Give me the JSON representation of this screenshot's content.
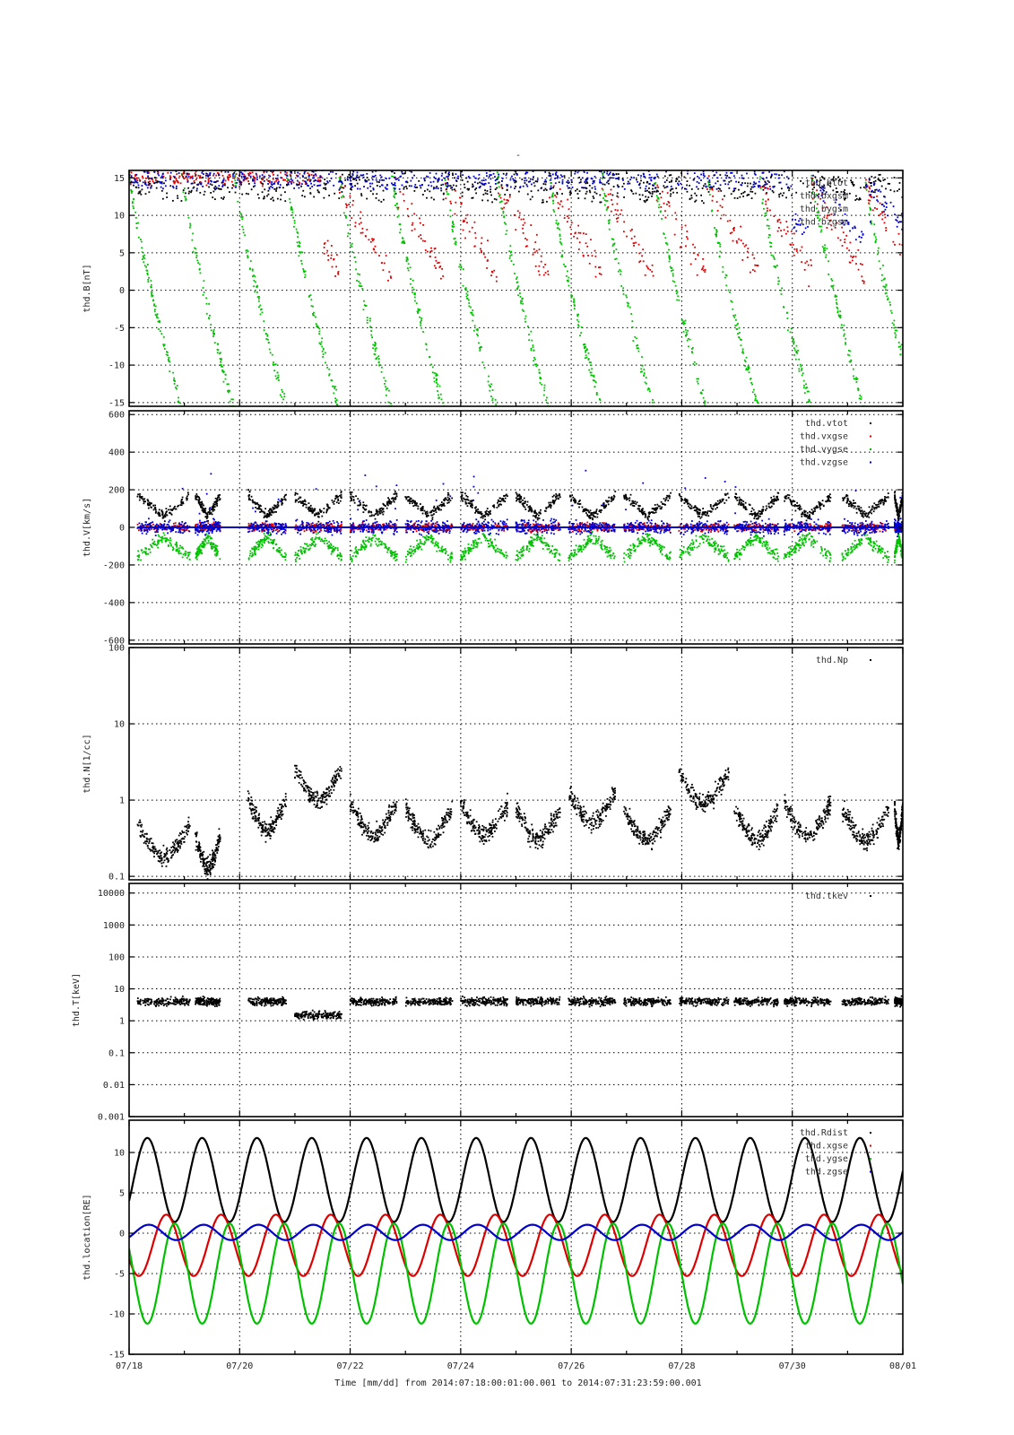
{
  "header": {
    "title": "-"
  },
  "xaxis": {
    "label": "Time [mm/dd]  from 2014:07:18:00:01:00.001  to  2014:07:31:23:59:00.001",
    "tick_labels": [
      "07/18",
      "07/20",
      "07/22",
      "07/24",
      "07/26",
      "07/28",
      "07/30",
      "08/01"
    ]
  },
  "colors": {
    "black": "#000000",
    "red": "#dd0000",
    "green": "#00c000",
    "blue": "#0000cc"
  },
  "chart_data": [
    {
      "type": "scatter",
      "id": "B",
      "ylabel": "thd.B[nT]",
      "ylim": [
        -15.5,
        16
      ],
      "yscale": "linear",
      "y_ticks": [
        -15,
        -10,
        -5,
        0,
        5,
        10,
        15
      ],
      "grid": true,
      "legend_position": "top-right",
      "series": [
        {
          "name": "thd.btot",
          "color": "#000000"
        },
        {
          "name": "thd.bxgsm",
          "color": "#dd0000"
        },
        {
          "name": "thd.bygsm",
          "color": "#00c000"
        },
        {
          "name": "thd.bzgsm",
          "color": "#0000cc"
        }
      ]
    },
    {
      "type": "scatter",
      "id": "V",
      "ylabel": "thd.V[km/s]",
      "ylim": [
        -620,
        620
      ],
      "yscale": "linear",
      "y_ticks": [
        -600,
        -400,
        -200,
        0,
        200,
        400,
        600
      ],
      "grid": true,
      "legend_position": "top-right",
      "series": [
        {
          "name": "thd.vtot",
          "color": "#000000"
        },
        {
          "name": "thd.vxgse",
          "color": "#dd0000"
        },
        {
          "name": "thd.vygse",
          "color": "#00c000"
        },
        {
          "name": "thd.vzgse",
          "color": "#0000cc"
        }
      ]
    },
    {
      "type": "scatter",
      "id": "N",
      "ylabel": "thd.N[1/cc]",
      "ylim": [
        0.09,
        100
      ],
      "yscale": "log",
      "y_ticks": [
        0.1,
        1,
        10,
        100
      ],
      "grid": true,
      "legend_position": "top-right",
      "series": [
        {
          "name": "thd.Np",
          "color": "#000000"
        }
      ]
    },
    {
      "type": "scatter",
      "id": "T",
      "ylabel": "thd.T[keV]",
      "ylim": [
        0.001,
        20000
      ],
      "yscale": "log",
      "y_ticks": [
        0.001,
        0.01,
        0.1,
        1,
        10,
        100,
        1000,
        10000
      ],
      "y_tick_labels": [
        "0.001",
        "0.01",
        "0.1",
        "1",
        "10",
        "100",
        "1000",
        "10000"
      ],
      "grid": true,
      "legend_position": "top-right",
      "series": [
        {
          "name": "thd.tkev",
          "color": "#000000"
        }
      ]
    },
    {
      "type": "line",
      "id": "location",
      "ylabel": "thd.location[RE]",
      "ylim": [
        -15,
        14
      ],
      "yscale": "linear",
      "y_ticks": [
        -15,
        -10,
        -5,
        0,
        5,
        10
      ],
      "grid": true,
      "legend_position": "top-right",
      "series": [
        {
          "name": "thd.Rdist",
          "color": "#000000"
        },
        {
          "name": "thd.xgse",
          "color": "#dd0000"
        },
        {
          "name": "thd.ygse",
          "color": "#00c000"
        },
        {
          "name": "thd.zgse",
          "color": "#0000cc"
        }
      ]
    }
  ]
}
